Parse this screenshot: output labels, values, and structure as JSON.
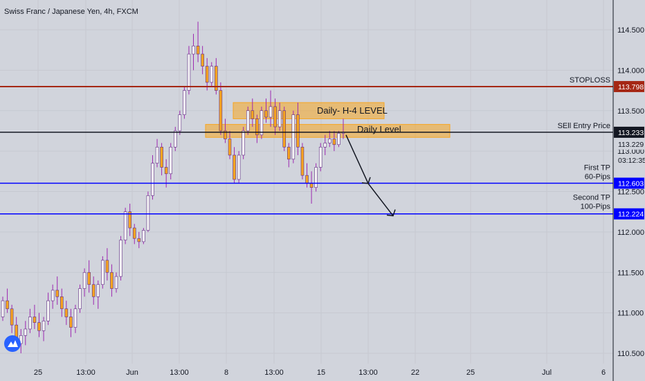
{
  "chart_data": {
    "type": "candlestick",
    "title": "Swiss Franc / Japanese Yen, 4h, FXCM",
    "y_axis": {
      "range": [
        110.45,
        114.9
      ],
      "ticks": [
        "114.500",
        "114.000",
        "113.500",
        "113.000",
        "112.500",
        "112.000",
        "111.500",
        "111.000",
        "110.500"
      ]
    },
    "x_axis": {
      "ticks": [
        "25",
        "13:00",
        "Jun",
        "13:00",
        "8",
        "13:00",
        "15",
        "13:00",
        "22",
        "25",
        "Jul",
        "6"
      ]
    },
    "colors": {
      "up": "#f5f5f5",
      "down": "#f7a520",
      "wick": "#9c27b0",
      "bar_outline": "#5d2c82"
    },
    "candles": [
      [
        110.95,
        111.2,
        110.9,
        111.15
      ],
      [
        111.15,
        111.3,
        111.0,
        111.05
      ],
      [
        111.05,
        111.1,
        110.75,
        110.85
      ],
      [
        110.85,
        110.95,
        110.55,
        110.62
      ],
      [
        110.62,
        110.8,
        110.5,
        110.72
      ],
      [
        110.72,
        110.9,
        110.6,
        110.8
      ],
      [
        110.8,
        111.05,
        110.75,
        110.95
      ],
      [
        110.95,
        111.1,
        110.8,
        110.88
      ],
      [
        110.88,
        111.0,
        110.7,
        110.78
      ],
      [
        110.78,
        110.95,
        110.65,
        110.9
      ],
      [
        110.9,
        111.25,
        110.85,
        111.15
      ],
      [
        111.15,
        111.35,
        111.05,
        111.28
      ],
      [
        111.28,
        111.45,
        111.1,
        111.2
      ],
      [
        111.2,
        111.3,
        110.95,
        111.05
      ],
      [
        111.05,
        111.15,
        110.85,
        110.95
      ],
      [
        110.95,
        111.05,
        110.7,
        110.82
      ],
      [
        110.82,
        111.1,
        110.75,
        111.05
      ],
      [
        111.05,
        111.35,
        111.0,
        111.3
      ],
      [
        111.3,
        111.55,
        111.2,
        111.5
      ],
      [
        111.5,
        111.65,
        111.25,
        111.35
      ],
      [
        111.35,
        111.45,
        111.1,
        111.2
      ],
      [
        111.2,
        111.4,
        111.05,
        111.35
      ],
      [
        111.35,
        111.7,
        111.3,
        111.65
      ],
      [
        111.65,
        111.8,
        111.4,
        111.5
      ],
      [
        111.5,
        111.6,
        111.2,
        111.3
      ],
      [
        111.3,
        111.5,
        111.25,
        111.45
      ],
      [
        111.45,
        111.95,
        111.4,
        111.9
      ],
      [
        111.9,
        112.3,
        111.85,
        112.25
      ],
      [
        112.25,
        112.35,
        111.95,
        112.05
      ],
      [
        112.05,
        112.1,
        111.85,
        111.92
      ],
      [
        111.92,
        112.0,
        111.8,
        111.88
      ],
      [
        111.88,
        112.05,
        111.85,
        112.02
      ],
      [
        112.02,
        112.5,
        112.0,
        112.45
      ],
      [
        112.45,
        112.95,
        112.4,
        112.85
      ],
      [
        112.85,
        113.15,
        112.8,
        113.05
      ],
      [
        113.05,
        113.1,
        112.7,
        112.8
      ],
      [
        112.8,
        112.9,
        112.55,
        112.72
      ],
      [
        112.72,
        113.1,
        112.65,
        113.05
      ],
      [
        113.05,
        113.3,
        113.0,
        113.25
      ],
      [
        113.25,
        113.5,
        113.2,
        113.45
      ],
      [
        113.45,
        113.8,
        113.4,
        113.75
      ],
      [
        113.75,
        114.3,
        113.7,
        114.2
      ],
      [
        114.2,
        114.45,
        114.0,
        114.3
      ],
      [
        114.3,
        114.6,
        114.1,
        114.2
      ],
      [
        114.2,
        114.3,
        113.95,
        114.05
      ],
      [
        114.05,
        114.15,
        113.75,
        113.85
      ],
      [
        113.85,
        114.1,
        113.8,
        114.05
      ],
      [
        114.05,
        114.15,
        113.7,
        113.75
      ],
      [
        113.75,
        113.85,
        113.2,
        113.25
      ],
      [
        113.25,
        113.4,
        113.1,
        113.15
      ],
      [
        113.15,
        113.25,
        112.9,
        112.95
      ],
      [
        112.95,
        113.05,
        112.6,
        112.65
      ],
      [
        112.65,
        113.0,
        112.6,
        112.95
      ],
      [
        112.95,
        113.3,
        112.9,
        113.25
      ],
      [
        113.25,
        113.55,
        113.2,
        113.5
      ],
      [
        113.5,
        113.65,
        113.3,
        113.4
      ],
      [
        113.4,
        113.45,
        113.1,
        113.2
      ],
      [
        113.2,
        113.55,
        113.15,
        113.5
      ],
      [
        113.5,
        113.65,
        113.35,
        113.42
      ],
      [
        113.42,
        113.75,
        113.3,
        113.55
      ],
      [
        113.55,
        113.65,
        113.2,
        113.3
      ],
      [
        113.3,
        113.6,
        113.25,
        113.5
      ],
      [
        113.5,
        113.55,
        113.0,
        113.05
      ],
      [
        113.05,
        113.1,
        112.8,
        112.9
      ],
      [
        112.9,
        113.5,
        112.85,
        113.45
      ],
      [
        113.45,
        113.6,
        112.95,
        113.05
      ],
      [
        113.05,
        113.1,
        112.65,
        112.7
      ],
      [
        112.7,
        112.85,
        112.55,
        112.6
      ],
      [
        112.6,
        112.75,
        112.35,
        112.55
      ],
      [
        112.55,
        112.85,
        112.5,
        112.8
      ],
      [
        112.8,
        113.1,
        112.75,
        113.05
      ],
      [
        113.05,
        113.2,
        112.95,
        113.1
      ],
      [
        113.1,
        113.25,
        113.05,
        113.15
      ],
      [
        113.15,
        113.25,
        113.0,
        113.08
      ],
      [
        113.08,
        113.25,
        113.05,
        113.22
      ],
      [
        113.22,
        113.4,
        113.15,
        113.23
      ]
    ]
  },
  "levels": {
    "stoploss": {
      "label": "STOPLOSS",
      "value": "113.798",
      "color": "#a52714"
    },
    "entry": {
      "label": "SEll Entry Price",
      "value": "113.233",
      "color": "#131722"
    },
    "current": {
      "value": "113.229"
    },
    "countdown": {
      "value": "03:12:35"
    },
    "tp1": {
      "label1": "First TP",
      "label2": "60-Pips",
      "value": "112.603",
      "color": "#0000ff"
    },
    "tp2": {
      "label1": "Second TP",
      "label2": "100-Pips",
      "value": "112.224",
      "color": "#0000ff"
    }
  },
  "zones": {
    "upper": {
      "label": "Daily- H-4 LEVEL",
      "low": 113.4,
      "high": 113.6
    },
    "lower": {
      "label": "Daily Level",
      "low": 113.17,
      "high": 113.33
    }
  }
}
